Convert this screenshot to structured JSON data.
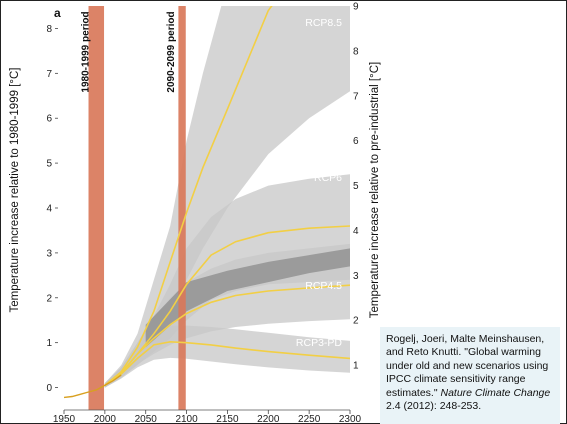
{
  "chart_data": {
    "type": "area",
    "panel_label": "a",
    "xlim": [
      1950,
      2300
    ],
    "x_ticks": [
      1950,
      2000,
      2050,
      2100,
      2150,
      2200,
      2250,
      2300
    ],
    "ylim_left": [
      -0.5,
      8.5
    ],
    "y_ticks_left": [
      0,
      1,
      2,
      3,
      4,
      5,
      6,
      7,
      8
    ],
    "ylabel_left": "Temperature increase relative to 1980-1999 [°C]",
    "ylim_right_offset": 0.5,
    "y_ticks_right": [
      1,
      2,
      3,
      4,
      5,
      6,
      7,
      8,
      9
    ],
    "ylabel_right": "Temperature increase relative to pre-industrial [°C]",
    "periods": [
      {
        "label": "1980-1999 period",
        "x_start": 1980,
        "x_end": 1999,
        "color": "#d9785a"
      },
      {
        "label": "2090-2099 period",
        "x_start": 2090,
        "x_end": 2099,
        "color": "#d9785a"
      }
    ],
    "historical": {
      "x": [
        1950,
        1960,
        1970,
        1980,
        1990,
        2000,
        2010,
        2020
      ],
      "y": [
        -0.22,
        -0.2,
        -0.15,
        -0.1,
        -0.05,
        0.05,
        0.15,
        0.28
      ]
    },
    "series": [
      {
        "name": "RCP8.5",
        "x": [
          2000,
          2020,
          2040,
          2060,
          2080,
          2100,
          2120,
          2150,
          2200,
          2250,
          2300
        ],
        "median": [
          0.05,
          0.35,
          0.9,
          1.7,
          2.8,
          3.9,
          4.9,
          6.2,
          8.4,
          9.6,
          10.5
        ],
        "lower": [
          0.0,
          0.25,
          0.6,
          1.1,
          1.7,
          2.4,
          3.1,
          4.0,
          5.2,
          6.0,
          6.6
        ],
        "upper": [
          0.1,
          0.5,
          1.2,
          2.4,
          3.6,
          5.5,
          7.0,
          9.0,
          10.5,
          11.0,
          11.0
        ]
      },
      {
        "name": "RCP6",
        "x": [
          2000,
          2020,
          2040,
          2060,
          2080,
          2100,
          2130,
          2160,
          2200,
          2250,
          2300
        ],
        "median": [
          0.05,
          0.32,
          0.75,
          1.2,
          1.7,
          2.3,
          2.95,
          3.25,
          3.45,
          3.55,
          3.6
        ],
        "lower": [
          0.0,
          0.22,
          0.5,
          0.8,
          1.1,
          1.5,
          1.95,
          2.15,
          2.3,
          2.35,
          2.4
        ],
        "upper": [
          0.1,
          0.45,
          1.0,
          1.6,
          2.3,
          3.1,
          3.8,
          4.2,
          4.5,
          4.65,
          4.75
        ]
      },
      {
        "name": "RCP4.5",
        "x": [
          2000,
          2020,
          2040,
          2060,
          2080,
          2100,
          2130,
          2160,
          2200,
          2250,
          2300
        ],
        "median": [
          0.05,
          0.32,
          0.75,
          1.1,
          1.4,
          1.65,
          1.9,
          2.05,
          2.15,
          2.22,
          2.28
        ],
        "lower": [
          0.0,
          0.22,
          0.52,
          0.75,
          0.95,
          1.1,
          1.25,
          1.35,
          1.42,
          1.48,
          1.52
        ],
        "upper": [
          0.1,
          0.45,
          1.0,
          1.55,
          2.0,
          2.35,
          2.65,
          2.85,
          3.0,
          3.1,
          3.2
        ]
      },
      {
        "name": "RCP3-PD",
        "x": [
          2000,
          2020,
          2040,
          2060,
          2080,
          2100,
          2130,
          2160,
          2200,
          2250,
          2300
        ],
        "median": [
          0.05,
          0.3,
          0.65,
          0.95,
          1.02,
          1.0,
          0.95,
          0.88,
          0.8,
          0.72,
          0.65
        ],
        "lower": [
          0.0,
          0.2,
          0.45,
          0.62,
          0.66,
          0.64,
          0.58,
          0.52,
          0.45,
          0.38,
          0.33
        ],
        "upper": [
          0.1,
          0.42,
          0.88,
          1.3,
          1.38,
          1.38,
          1.35,
          1.3,
          1.22,
          1.12,
          1.04
        ]
      }
    ],
    "overlap_band": {
      "x": [
        2050,
        2100,
        2150,
        2200,
        2250,
        2300
      ],
      "lower": [
        0.9,
        1.7,
        2.15,
        2.35,
        2.55,
        2.7
      ],
      "upper": [
        1.4,
        2.35,
        2.6,
        2.8,
        2.95,
        3.1
      ]
    },
    "colors": {
      "band": "#c7c7c7",
      "overlap": "#8e8e8e",
      "median": "#f2cf45",
      "period": "#d9785a",
      "label": "#ffffff",
      "historical": "#d8a020"
    }
  },
  "citation": {
    "authors": "Rogelj, Joeri, Malte Meinshausen, and Reto Knutti.",
    "title": "\"Global warming under old and new scenarios using IPCC climate sensitivity range estimates.\"",
    "journal": "Nature Climate Change",
    "details": "2.4 (2012): 248-253."
  }
}
